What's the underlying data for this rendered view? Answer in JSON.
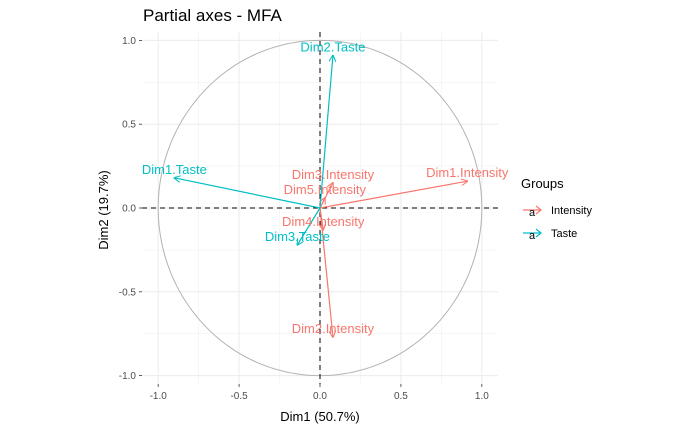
{
  "chart_data": {
    "type": "scatter",
    "subtype": "correlation-circle",
    "title": "Partial axes - MFA",
    "xlabel": "Dim1 (50.7%)",
    "ylabel": "Dim2 (19.7%)",
    "xlim": [
      -1.1,
      1.1
    ],
    "ylim": [
      -1.05,
      1.05
    ],
    "xticks": [
      -1.0,
      -0.5,
      0.0,
      0.5,
      1.0
    ],
    "yticks": [
      -1.0,
      -0.5,
      0.0,
      0.5,
      1.0
    ],
    "xtick_labels": [
      "-1.0",
      "-0.5",
      "0.0",
      "0.5",
      "1.0"
    ],
    "ytick_labels": [
      "-1.0",
      "-0.5",
      "0.0",
      "0.5",
      "1.0"
    ],
    "grid": true,
    "unit_circle": true,
    "zero_lines": "dashed",
    "legend": {
      "title": "Groups",
      "position": "right",
      "key_glyph": "a",
      "entries": [
        {
          "name": "Intensity",
          "color": "#F8766D"
        },
        {
          "name": "Taste",
          "color": "#00BFC4"
        }
      ]
    },
    "series": [
      {
        "name": "Intensity",
        "color": "#F8766D",
        "points": [
          {
            "label": "Dim1.Intensity",
            "x": 0.91,
            "y": 0.16
          },
          {
            "label": "Dim2.Intensity",
            "x": 0.08,
            "y": -0.77
          },
          {
            "label": "Dim3.Intensity",
            "x": 0.08,
            "y": 0.15
          },
          {
            "label": "Dim4.Intensity",
            "x": 0.02,
            "y": -0.13
          },
          {
            "label": "Dim5.Intensity",
            "x": 0.03,
            "y": 0.06
          }
        ]
      },
      {
        "name": "Taste",
        "color": "#00BFC4",
        "points": [
          {
            "label": "Dim1.Taste",
            "x": -0.9,
            "y": 0.18
          },
          {
            "label": "Dim2.Taste",
            "x": 0.08,
            "y": 0.91
          },
          {
            "label": "Dim3.Taste",
            "x": -0.14,
            "y": -0.22
          }
        ]
      }
    ]
  }
}
